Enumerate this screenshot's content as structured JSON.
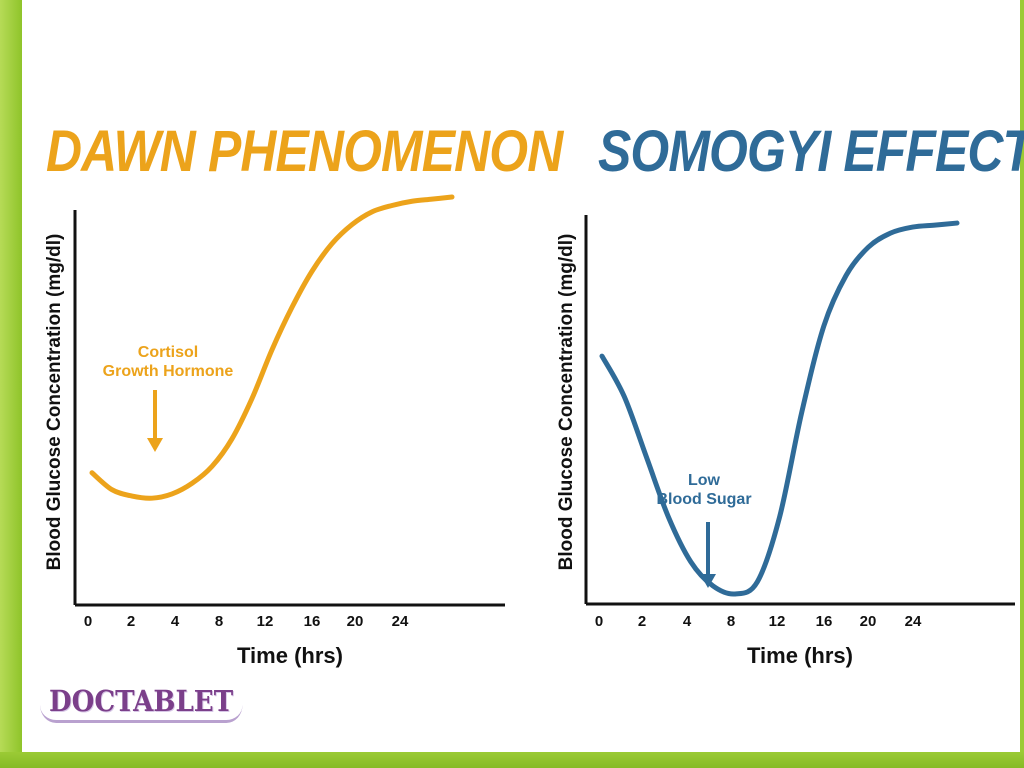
{
  "brand": {
    "logo": "DOCTABLET"
  },
  "colors": {
    "dawn": "#eca31b",
    "somogyi": "#2f6b98",
    "background": "#a3cf3a"
  },
  "chart_data": [
    {
      "type": "line",
      "title": "DAWN PHENOMENON",
      "xlabel": "Time (hrs)",
      "ylabel": "Blood Glucose Concentration (mg/dl)",
      "x_tick_labels": [
        "0",
        "2",
        "4",
        "8",
        "12",
        "16",
        "20",
        "24"
      ],
      "grid": false,
      "series": [
        {
          "color": "#eca31b",
          "points": [
            [
              0,
              60
            ],
            [
              1,
              52
            ],
            [
              2,
              49
            ],
            [
              3,
              48
            ],
            [
              4,
              50
            ],
            [
              5,
              55
            ],
            [
              6,
              63
            ],
            [
              7,
              76
            ],
            [
              8,
              95
            ],
            [
              9,
              118
            ],
            [
              10,
              138
            ],
            [
              11,
              155
            ],
            [
              12,
              168
            ],
            [
              13,
              177
            ],
            [
              14,
              183
            ],
            [
              15,
              186
            ],
            [
              16,
              188
            ],
            [
              17,
              189
            ],
            [
              18,
              190
            ]
          ]
        }
      ],
      "annotation": {
        "lines": [
          "Cortisol",
          "Growth Hormone"
        ],
        "x": 3
      }
    },
    {
      "type": "line",
      "title": "SOMOGYI EFFECT",
      "xlabel": "Time (hrs)",
      "ylabel": "Blood Glucose Concentration (mg/dl)",
      "x_tick_labels": [
        "0",
        "2",
        "4",
        "8",
        "12",
        "16",
        "20",
        "24"
      ],
      "grid": false,
      "series": [
        {
          "color": "#2f6b98",
          "points": [
            [
              0,
              120
            ],
            [
              1,
              100
            ],
            [
              2,
              70
            ],
            [
              3,
              40
            ],
            [
              4,
              18
            ],
            [
              5,
              6
            ],
            [
              6,
              2
            ],
            [
              7,
              8
            ],
            [
              8,
              40
            ],
            [
              9,
              92
            ],
            [
              10,
              135
            ],
            [
              11,
              160
            ],
            [
              12,
              174
            ],
            [
              13,
              181
            ],
            [
              14,
              184
            ],
            [
              15,
              185
            ],
            [
              16,
              186
            ]
          ]
        }
      ],
      "annotation": {
        "lines": [
          "Low",
          "Blood Sugar"
        ],
        "x": 6
      }
    }
  ]
}
